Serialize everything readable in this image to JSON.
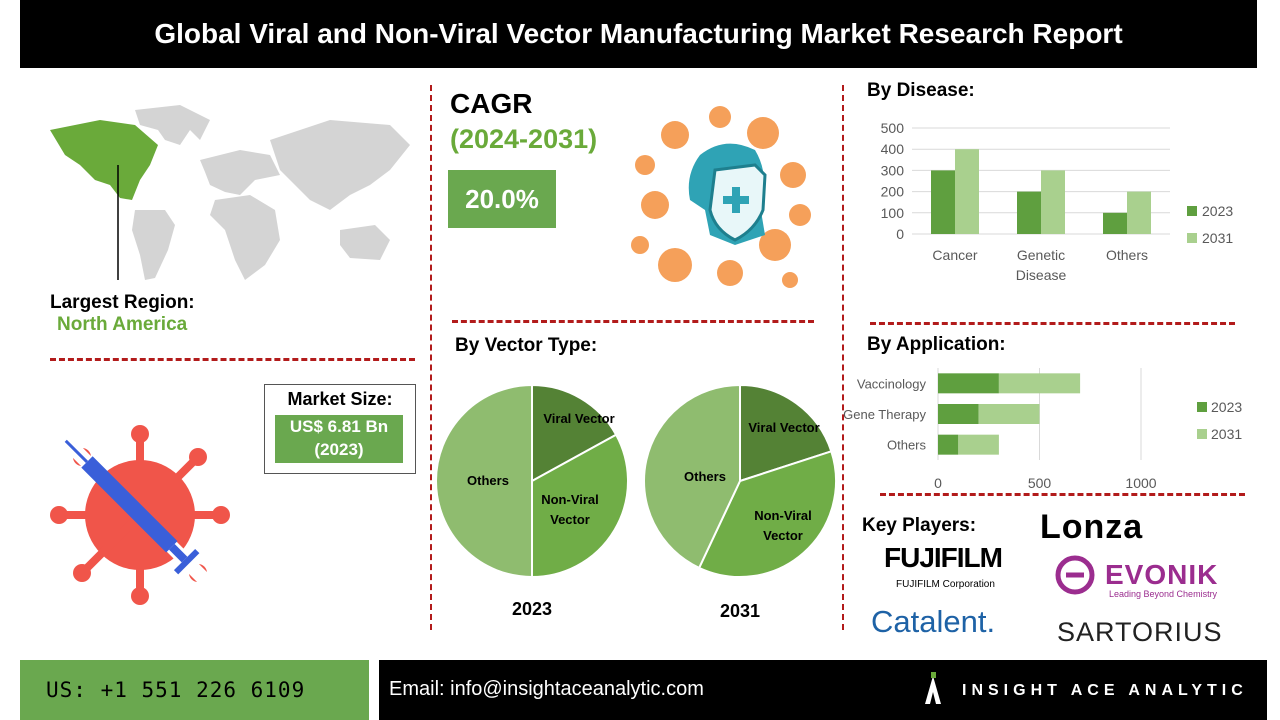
{
  "header": {
    "title": "Global Viral and Non-Viral Vector Manufacturing Market Research Report"
  },
  "region": {
    "label": "Largest Region:",
    "value": "North America"
  },
  "cagr": {
    "label": "CAGR",
    "period": "(2024-2031)",
    "value": "20.0%"
  },
  "market_size": {
    "label": "Market Size:",
    "value_line1": "US$ 6.81 Bn",
    "value_line2": "(2023)"
  },
  "sections": {
    "disease": "By Disease:",
    "vector": "By Vector Type:",
    "application": "By Application:",
    "players": "Key Players:"
  },
  "key_players": {
    "lonza": "Lonza",
    "fujifilm": "FUJIFILM",
    "fujifilm_sub": "FUJIFILM Corporation",
    "evonik": "EVONIK",
    "evonik_sub": "Leading Beyond Chemistry",
    "catalent": "Catalent.",
    "sartorius": "SARTORIUS"
  },
  "footer": {
    "phone": "US: +1 551 226 6109",
    "email": "Email: info@insightaceanalytic.com",
    "brand": "INSIGHT ACE ANALYTIC"
  },
  "colors": {
    "dark_green": "#5f9f3f",
    "light_green": "#a9d08e",
    "pie_dark": "#548235",
    "pie_mid": "#70ad47",
    "pie_light": "#8fbc6f",
    "accent_red": "#b21b1b"
  },
  "chart_data": [
    {
      "type": "bar",
      "categories": [
        "Cancer",
        "Genetic Disease",
        "Others"
      ],
      "category_lines": [
        [
          "Cancer"
        ],
        [
          "Genetic",
          "Disease"
        ],
        [
          "Others"
        ]
      ],
      "series": [
        {
          "name": "2023",
          "values": [
            300,
            200,
            100
          ]
        },
        {
          "name": "2031",
          "values": [
            400,
            300,
            200
          ]
        }
      ],
      "ylim": [
        0,
        500
      ],
      "yticks": [
        0,
        100,
        200,
        300,
        400,
        500
      ],
      "grid": true,
      "legend": "right"
    },
    {
      "type": "bar",
      "orientation": "horizontal",
      "stacked": true,
      "categories": [
        "Vaccinology",
        "Gene Therapy",
        "Others"
      ],
      "series": [
        {
          "name": "2023",
          "values": [
            300,
            200,
            100
          ]
        },
        {
          "name": "2031",
          "values": [
            400,
            300,
            200
          ]
        }
      ],
      "xlim": [
        0,
        1000
      ],
      "xticks": [
        0,
        500,
        1000
      ],
      "grid": true,
      "legend": "right"
    },
    {
      "type": "pie",
      "label": "2023",
      "slices": [
        {
          "name": "Viral Vector",
          "value": 17
        },
        {
          "name": "Non-Viral Vector",
          "value": 33
        },
        {
          "name": "Others",
          "value": 50
        }
      ]
    },
    {
      "type": "pie",
      "label": "2031",
      "slices": [
        {
          "name": "Viral Vector",
          "value": 20
        },
        {
          "name": "Non-Viral Vector",
          "value": 37
        },
        {
          "name": "Others",
          "value": 43
        }
      ]
    }
  ]
}
